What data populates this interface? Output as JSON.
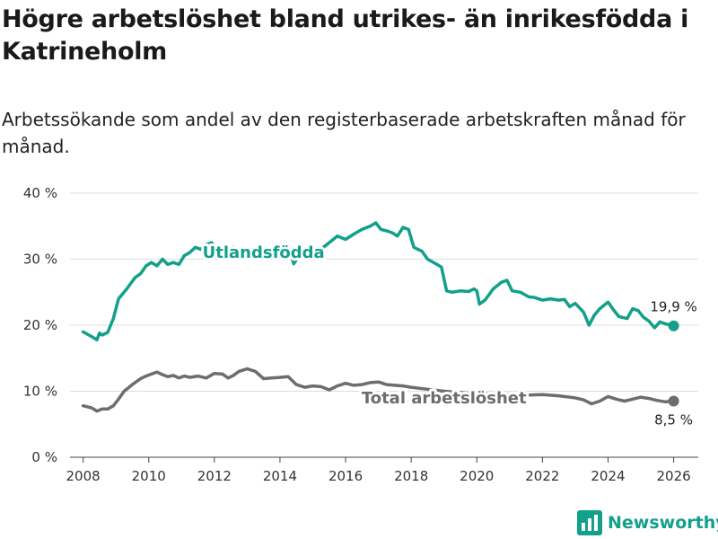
{
  "title": "Högre arbetslöshet bland utrikes- än inrikesfödda i Katrineholm",
  "subtitle": "Arbetssökande som andel av den registerbaserade arbetskraften månad för månad.",
  "brand": {
    "name": "Newsworthy",
    "color": "#12a08a"
  },
  "colors": {
    "utlandsfodda": "#12a08a",
    "total": "#6d6d6d"
  },
  "chart_data": {
    "type": "line",
    "title": "Högre arbetslöshet bland utrikes- än inrikesfödda i Katrineholm",
    "xlabel": "",
    "ylabel": "",
    "xlim": [
      2007.6,
      2026.75
    ],
    "ylim": [
      0,
      40
    ],
    "yticks": [
      0,
      10,
      20,
      30,
      40
    ],
    "ytick_labels": [
      "0 %",
      "10 %",
      "20 %",
      "30 %",
      "40 %"
    ],
    "xticks": [
      2008,
      2010,
      2012,
      2014,
      2016,
      2018,
      2020,
      2022,
      2024,
      2026
    ],
    "grid": true,
    "legend": "inline labels",
    "series": [
      {
        "name": "Utlandsfödda",
        "end_label": "19,9 %",
        "x": [
          2008.0,
          2008.25,
          2008.42,
          2008.5,
          2008.58,
          2008.75,
          2008.92,
          2009.08,
          2009.33,
          2009.58,
          2009.75,
          2009.92,
          2010.08,
          2010.25,
          2010.42,
          2010.58,
          2010.75,
          2010.92,
          2011.08,
          2011.25,
          2011.42,
          2011.58,
          2011.75,
          2011.92,
          2012.08,
          2012.25,
          2012.42,
          2012.58,
          2012.75,
          2013.0,
          2013.25,
          2013.5,
          2013.75,
          2014.0,
          2014.25,
          2014.42,
          2014.58,
          2014.75,
          2015.0,
          2015.25,
          2015.5,
          2015.75,
          2016.0,
          2016.25,
          2016.5,
          2016.75,
          2016.92,
          2017.08,
          2017.25,
          2017.42,
          2017.58,
          2017.75,
          2017.92,
          2018.08,
          2018.33,
          2018.5,
          2018.75,
          2018.92,
          2019.08,
          2019.25,
          2019.5,
          2019.75,
          2019.92,
          2020.0,
          2020.08,
          2020.25,
          2020.5,
          2020.75,
          2020.92,
          2021.08,
          2021.33,
          2021.58,
          2021.75,
          2022.0,
          2022.25,
          2022.5,
          2022.67,
          2022.83,
          2023.0,
          2023.25,
          2023.42,
          2023.58,
          2023.75,
          2024.0,
          2024.17,
          2024.33,
          2024.58,
          2024.75,
          2024.92,
          2025.08,
          2025.25,
          2025.42,
          2025.58,
          2025.75,
          2026.0
        ],
        "values": [
          19.0,
          18.3,
          17.8,
          18.8,
          18.5,
          18.9,
          21.0,
          24.0,
          25.5,
          27.2,
          27.8,
          29.0,
          29.5,
          29.0,
          30.0,
          29.2,
          29.5,
          29.2,
          30.5,
          31.0,
          31.8,
          31.5,
          32.2,
          32.5,
          31.2,
          30.8,
          31.3,
          31.8,
          31.2,
          31.5,
          31.0,
          31.4,
          31.6,
          31.3,
          32.0,
          29.3,
          30.5,
          31.0,
          30.2,
          31.5,
          32.5,
          33.5,
          33.0,
          33.8,
          34.5,
          35.0,
          35.5,
          34.5,
          34.3,
          34.0,
          33.5,
          34.8,
          34.5,
          31.8,
          31.2,
          30.0,
          29.3,
          28.8,
          25.2,
          25.0,
          25.2,
          25.1,
          25.5,
          25.2,
          23.2,
          23.8,
          25.5,
          26.5,
          26.8,
          25.2,
          25.0,
          24.3,
          24.2,
          23.8,
          24.0,
          23.8,
          23.9,
          22.8,
          23.3,
          22.0,
          20.0,
          21.5,
          22.5,
          23.5,
          22.3,
          21.3,
          21.0,
          22.5,
          22.2,
          21.2,
          20.6,
          19.6,
          20.5,
          20.2,
          19.9
        ]
      },
      {
        "name": "Total arbetslöshet",
        "end_label": "8,5 %",
        "x": [
          2008.0,
          2008.25,
          2008.42,
          2008.58,
          2008.75,
          2008.92,
          2009.08,
          2009.25,
          2009.5,
          2009.75,
          2009.92,
          2010.08,
          2010.25,
          2010.42,
          2010.58,
          2010.75,
          2010.92,
          2011.08,
          2011.25,
          2011.5,
          2011.75,
          2012.0,
          2012.25,
          2012.42,
          2012.58,
          2012.75,
          2013.0,
          2013.25,
          2013.5,
          2013.75,
          2014.0,
          2014.25,
          2014.5,
          2014.75,
          2015.0,
          2015.25,
          2015.5,
          2015.75,
          2016.0,
          2016.25,
          2016.5,
          2016.75,
          2017.0,
          2017.25,
          2017.5,
          2017.75,
          2018.0,
          2018.5,
          2019.0,
          2019.5,
          2020.0,
          2020.5,
          2021.0,
          2021.5,
          2022.0,
          2022.5,
          2023.0,
          2023.25,
          2023.5,
          2023.75,
          2024.0,
          2024.25,
          2024.5,
          2024.75,
          2025.0,
          2025.25,
          2025.5,
          2025.75,
          2026.0
        ],
        "values": [
          7.8,
          7.5,
          7.0,
          7.3,
          7.3,
          7.8,
          8.8,
          10.0,
          11.0,
          11.9,
          12.3,
          12.6,
          12.9,
          12.5,
          12.2,
          12.4,
          12.0,
          12.3,
          12.1,
          12.3,
          12.0,
          12.7,
          12.6,
          12.0,
          12.4,
          13.0,
          13.4,
          13.0,
          11.9,
          12.0,
          12.1,
          12.2,
          11.0,
          10.6,
          10.8,
          10.7,
          10.2,
          10.8,
          11.2,
          10.9,
          11.0,
          11.3,
          11.4,
          11.0,
          10.9,
          10.8,
          10.6,
          10.3,
          10.0,
          9.8,
          9.6,
          9.6,
          9.5,
          9.4,
          9.5,
          9.3,
          9.0,
          8.7,
          8.1,
          8.5,
          9.2,
          8.8,
          8.5,
          8.8,
          9.1,
          8.9,
          8.6,
          8.4,
          8.5
        ]
      }
    ]
  }
}
